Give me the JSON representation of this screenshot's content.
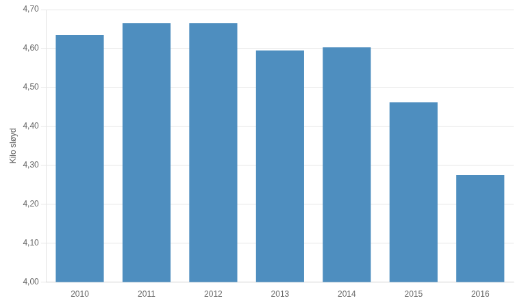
{
  "chart_data": {
    "type": "bar",
    "categories": [
      "2010",
      "2011",
      "2012",
      "2013",
      "2014",
      "2015",
      "2016"
    ],
    "values": [
      4.635,
      4.665,
      4.665,
      4.595,
      4.603,
      4.462,
      4.275
    ],
    "color": "#4e8ebf",
    "ylabel": "Kilo sløyd",
    "ylim": [
      4.0,
      4.7
    ],
    "yticks": [
      {
        "value": 4.0,
        "label": "4,00"
      },
      {
        "value": 4.1,
        "label": "4,10"
      },
      {
        "value": 4.2,
        "label": "4,20"
      },
      {
        "value": 4.3,
        "label": "4,30"
      },
      {
        "value": 4.4,
        "label": "4,40"
      },
      {
        "value": 4.5,
        "label": "4,50"
      },
      {
        "value": 4.6,
        "label": "4,60"
      },
      {
        "value": 4.7,
        "label": "4,70"
      }
    ],
    "grid": true
  }
}
